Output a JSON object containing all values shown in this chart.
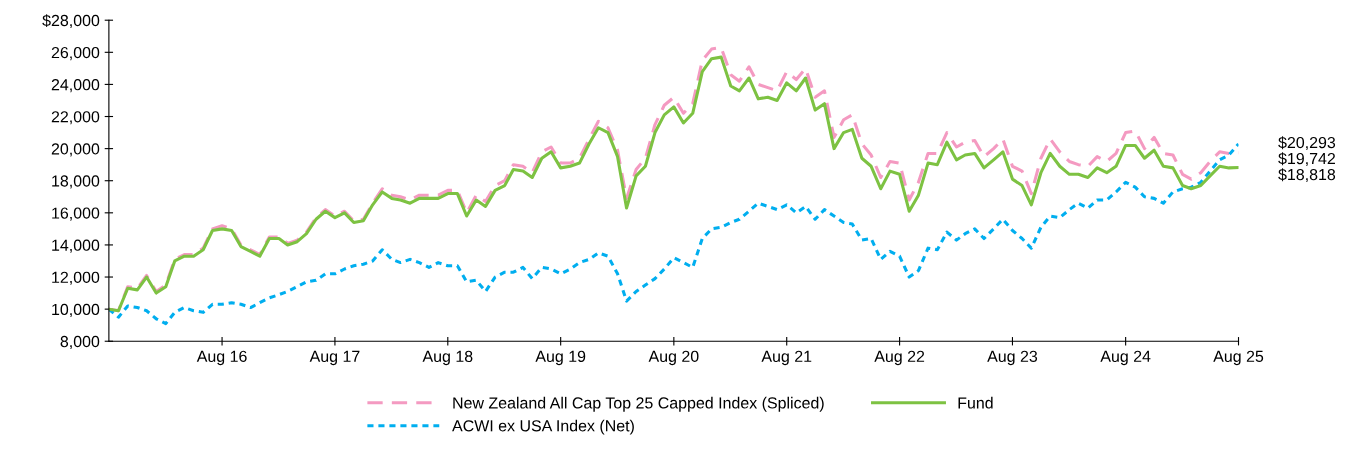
{
  "chart_data": {
    "type": "line",
    "x": [
      "2015-08",
      "2015-09",
      "2015-10",
      "2015-11",
      "2015-12",
      "2016-01",
      "2016-02",
      "2016-03",
      "2016-04",
      "2016-05",
      "2016-06",
      "2016-07",
      "2016-08",
      "2016-09",
      "2016-10",
      "2016-11",
      "2016-12",
      "2017-01",
      "2017-02",
      "2017-03",
      "2017-04",
      "2017-05",
      "2017-06",
      "2017-07",
      "2017-08",
      "2017-09",
      "2017-10",
      "2017-11",
      "2017-12",
      "2018-01",
      "2018-02",
      "2018-03",
      "2018-04",
      "2018-05",
      "2018-06",
      "2018-07",
      "2018-08",
      "2018-09",
      "2018-10",
      "2018-11",
      "2018-12",
      "2019-01",
      "2019-02",
      "2019-03",
      "2019-04",
      "2019-05",
      "2019-06",
      "2019-07",
      "2019-08",
      "2019-09",
      "2019-10",
      "2019-11",
      "2019-12",
      "2020-01",
      "2020-02",
      "2020-03",
      "2020-04",
      "2020-05",
      "2020-06",
      "2020-07",
      "2020-08",
      "2020-09",
      "2020-10",
      "2020-11",
      "2020-12",
      "2021-01",
      "2021-02",
      "2021-03",
      "2021-04",
      "2021-05",
      "2021-06",
      "2021-07",
      "2021-08",
      "2021-09",
      "2021-10",
      "2021-11",
      "2021-12",
      "2022-01",
      "2022-02",
      "2022-03",
      "2022-04",
      "2022-05",
      "2022-06",
      "2022-07",
      "2022-08",
      "2022-09",
      "2022-10",
      "2022-11",
      "2022-12",
      "2023-01",
      "2023-02",
      "2023-03",
      "2023-04",
      "2023-05",
      "2023-06",
      "2023-07",
      "2023-08",
      "2023-09",
      "2023-10",
      "2023-11",
      "2023-12",
      "2024-01",
      "2024-02",
      "2024-03",
      "2024-04",
      "2024-05",
      "2024-06",
      "2024-07",
      "2024-08",
      "2024-09",
      "2024-10",
      "2024-11",
      "2024-12",
      "2025-01",
      "2025-02",
      "2025-03",
      "2025-04",
      "2025-05",
      "2025-06",
      "2025-07",
      "2025-08"
    ],
    "series": [
      {
        "name": "New Zealand All Cap Top 25 Capped Index (Spliced)",
        "color": "#f49ac1",
        "line_style": "dashed",
        "values": [
          10000,
          9900,
          11400,
          11300,
          12100,
          11100,
          11500,
          13100,
          13400,
          13400,
          13800,
          15000,
          15200,
          15000,
          14000,
          13700,
          13400,
          14500,
          14500,
          14100,
          14300,
          14800,
          15700,
          16200,
          15800,
          16100,
          15500,
          15600,
          16600,
          17500,
          17100,
          17000,
          16800,
          17100,
          17100,
          17100,
          17400,
          17400,
          16000,
          17100,
          16700,
          17700,
          18000,
          19000,
          18900,
          18500,
          19800,
          20100,
          19100,
          19100,
          19400,
          20600,
          21700,
          21300,
          19900,
          16900,
          18700,
          19400,
          21500,
          22700,
          23200,
          22200,
          22800,
          25500,
          26200,
          26300,
          24600,
          24200,
          25100,
          24000,
          23800,
          23600,
          24800,
          24300,
          25000,
          23200,
          23600,
          20700,
          21800,
          22100,
          20300,
          19600,
          18200,
          19200,
          19100,
          16800,
          17900,
          19700,
          19700,
          21000,
          20100,
          20400,
          20500,
          19500,
          20000,
          20600,
          18900,
          18600,
          17200,
          19400,
          20600,
          19800,
          19200,
          19000,
          18900,
          19500,
          19200,
          19700,
          21000,
          21100,
          20000,
          20700,
          19700,
          19600,
          18400,
          18100,
          18500,
          19200,
          19800,
          19700,
          19742
        ]
      },
      {
        "name": "ACWI ex USA Index (Net)",
        "color": "#00aeef",
        "line_style": "dotted",
        "values": [
          10000,
          9500,
          10200,
          10100,
          9900,
          9400,
          9100,
          9800,
          10100,
          9900,
          9800,
          10300,
          10300,
          10400,
          10300,
          10100,
          10400,
          10700,
          10900,
          11100,
          11400,
          11700,
          11800,
          12200,
          12200,
          12500,
          12700,
          12800,
          13000,
          13700,
          13100,
          12900,
          13100,
          12900,
          12600,
          12900,
          12700,
          12700,
          11700,
          11800,
          11100,
          12000,
          12300,
          12300,
          12600,
          11900,
          12600,
          12500,
          12200,
          12500,
          12900,
          13100,
          13500,
          13300,
          12200,
          10500,
          11100,
          11500,
          11900,
          12500,
          13200,
          12900,
          12600,
          14400,
          15000,
          15100,
          15400,
          15600,
          16100,
          16600,
          16400,
          16200,
          16500,
          16000,
          16400,
          15600,
          16200,
          15800,
          15400,
          15300,
          14300,
          14400,
          13100,
          13600,
          13300,
          12000,
          12400,
          13800,
          13700,
          14800,
          14300,
          14700,
          15000,
          14400,
          15000,
          15600,
          14900,
          14400,
          13800,
          15100,
          15800,
          15700,
          16200,
          16600,
          16300,
          16800,
          16800,
          17300,
          17900,
          17600,
          17000,
          16900,
          16600,
          17300,
          17500,
          17600,
          17900,
          18600,
          19300,
          19600,
          20293
        ]
      },
      {
        "name": "Fund",
        "color": "#7dc242",
        "line_style": "solid",
        "values": [
          10000,
          9900,
          11300,
          11200,
          12000,
          11000,
          11400,
          13000,
          13300,
          13300,
          13700,
          14900,
          15000,
          14900,
          13900,
          13600,
          13300,
          14400,
          14400,
          14000,
          14200,
          14700,
          15600,
          16100,
          15700,
          16000,
          15400,
          15500,
          16500,
          17300,
          16900,
          16800,
          16600,
          16900,
          16900,
          16900,
          17200,
          17200,
          15800,
          16800,
          16400,
          17400,
          17700,
          18700,
          18600,
          18200,
          19400,
          19800,
          18800,
          18900,
          19100,
          20300,
          21300,
          21000,
          19500,
          16300,
          18300,
          18900,
          21000,
          22100,
          22600,
          21600,
          22200,
          24800,
          25600,
          25700,
          23900,
          23600,
          24400,
          23100,
          23200,
          23000,
          24100,
          23600,
          24400,
          22400,
          22800,
          20000,
          21000,
          21200,
          19400,
          18900,
          17500,
          18600,
          18400,
          16100,
          17100,
          19100,
          19000,
          20400,
          19300,
          19600,
          19700,
          18800,
          19300,
          19800,
          18100,
          17700,
          16500,
          18500,
          19700,
          18900,
          18400,
          18400,
          18200,
          18800,
          18500,
          18900,
          20200,
          20200,
          19400,
          19900,
          18900,
          18800,
          17700,
          17500,
          17700,
          18300,
          18900,
          18800,
          18818
        ]
      }
    ],
    "annotations": [
      {
        "text": "$20,293",
        "x": "2025-08",
        "y": 20293
      },
      {
        "text": "$19,742",
        "x": "2025-08",
        "y": 19742
      },
      {
        "text": "$18,818",
        "x": "2025-08",
        "y": 18818
      }
    ],
    "xlim": [
      "2015-08",
      "2025-08"
    ],
    "xticks": [
      {
        "value": "2016-08",
        "label": "Aug 16"
      },
      {
        "value": "2017-08",
        "label": "Aug 17"
      },
      {
        "value": "2018-08",
        "label": "Aug 18"
      },
      {
        "value": "2019-08",
        "label": "Aug 19"
      },
      {
        "value": "2020-08",
        "label": "Aug 20"
      },
      {
        "value": "2021-08",
        "label": "Aug 21"
      },
      {
        "value": "2022-08",
        "label": "Aug 22"
      },
      {
        "value": "2023-08",
        "label": "Aug 23"
      },
      {
        "value": "2024-08",
        "label": "Aug 24"
      },
      {
        "value": "2025-08",
        "label": "Aug 25"
      }
    ],
    "ylim": [
      8000,
      28000
    ],
    "yticks": [
      {
        "value": 8000,
        "label": "8,000"
      },
      {
        "value": 10000,
        "label": "10,000"
      },
      {
        "value": 12000,
        "label": "12,000"
      },
      {
        "value": 14000,
        "label": "14,000"
      },
      {
        "value": 16000,
        "label": "16,000"
      },
      {
        "value": 18000,
        "label": "18,000"
      },
      {
        "value": 20000,
        "label": "20,000"
      },
      {
        "value": 22000,
        "label": "22,000"
      },
      {
        "value": 24000,
        "label": "24,000"
      },
      {
        "value": 26000,
        "label": "26,000"
      },
      {
        "value": 28000,
        "label": "$28,000"
      }
    ],
    "grid": false,
    "legend": "bottom",
    "marker": "none"
  }
}
